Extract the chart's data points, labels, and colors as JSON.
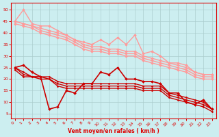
{
  "x": [
    0,
    1,
    2,
    3,
    4,
    5,
    6,
    7,
    8,
    9,
    10,
    11,
    12,
    13,
    14,
    15,
    16,
    17,
    18,
    19,
    20,
    21,
    22,
    23
  ],
  "pink_lines": [
    {
      "values": [
        45,
        50,
        44,
        43,
        43,
        41,
        39,
        37,
        36,
        35,
        37,
        35,
        38,
        35,
        39,
        31,
        32,
        30,
        27,
        27,
        26,
        23,
        22,
        22
      ],
      "color": "#ff9999",
      "lw": 1.0,
      "marker": "D",
      "ms": 2.0
    },
    {
      "values": [
        45,
        44,
        43,
        42,
        41,
        40,
        39,
        37,
        35,
        34,
        34,
        33,
        33,
        32,
        32,
        30,
        29,
        28,
        27,
        26,
        25,
        23,
        22,
        22
      ],
      "color": "#ff9999",
      "lw": 1.0,
      "marker": "D",
      "ms": 2.0
    },
    {
      "values": [
        45,
        44,
        43,
        41,
        40,
        39,
        38,
        36,
        34,
        33,
        33,
        32,
        32,
        31,
        31,
        29,
        28,
        27,
        26,
        25,
        24,
        22,
        21,
        21
      ],
      "color": "#ff9999",
      "lw": 1.0,
      "marker": "D",
      "ms": 2.0
    },
    {
      "values": [
        44,
        43,
        42,
        40,
        39,
        38,
        37,
        35,
        33,
        32,
        32,
        31,
        31,
        30,
        30,
        28,
        27,
        26,
        25,
        24,
        23,
        21,
        20,
        20
      ],
      "color": "#ff9999",
      "lw": 1.0,
      "marker": "D",
      "ms": 2.0
    }
  ],
  "red_lines": [
    {
      "values": [
        25,
        26,
        23,
        21,
        7,
        8,
        15,
        14,
        18,
        18,
        23,
        22,
        25,
        20,
        20,
        19,
        19,
        18,
        14,
        14,
        10,
        9,
        11,
        7
      ],
      "color": "#cc0000",
      "lw": 1.2,
      "marker": "D",
      "ms": 2.0
    },
    {
      "values": [
        25,
        23,
        21,
        21,
        21,
        19,
        18,
        18,
        18,
        18,
        18,
        18,
        18,
        18,
        18,
        17,
        17,
        17,
        14,
        13,
        12,
        11,
        10,
        7
      ],
      "color": "#cc0000",
      "lw": 1.0,
      "marker": "D",
      "ms": 1.5
    },
    {
      "values": [
        25,
        22,
        21,
        21,
        20,
        18,
        17,
        17,
        17,
        17,
        17,
        17,
        17,
        17,
        17,
        16,
        16,
        16,
        13,
        12,
        11,
        10,
        9,
        7
      ],
      "color": "#cc0000",
      "lw": 1.0,
      "marker": "D",
      "ms": 1.5
    },
    {
      "values": [
        24,
        21,
        21,
        20,
        20,
        17,
        16,
        16,
        16,
        16,
        16,
        16,
        16,
        16,
        16,
        15,
        15,
        15,
        12,
        11,
        10,
        9,
        8,
        6
      ],
      "color": "#cc0000",
      "lw": 1.0,
      "marker": "D",
      "ms": 1.5
    }
  ],
  "xlabel": "Vent moyen/en rafales ( km/h )",
  "ylim": [
    3,
    53
  ],
  "xlim": [
    -0.5,
    23.5
  ],
  "yticks": [
    5,
    10,
    15,
    20,
    25,
    30,
    35,
    40,
    45,
    50
  ],
  "xticks": [
    0,
    1,
    2,
    3,
    4,
    5,
    6,
    7,
    8,
    9,
    10,
    11,
    12,
    13,
    14,
    15,
    16,
    17,
    18,
    19,
    20,
    21,
    22,
    23
  ],
  "bg_color": "#cceef0",
  "grid_color": "#aacccc",
  "text_color": "#dd0000",
  "xlabel_color": "#dd0000"
}
